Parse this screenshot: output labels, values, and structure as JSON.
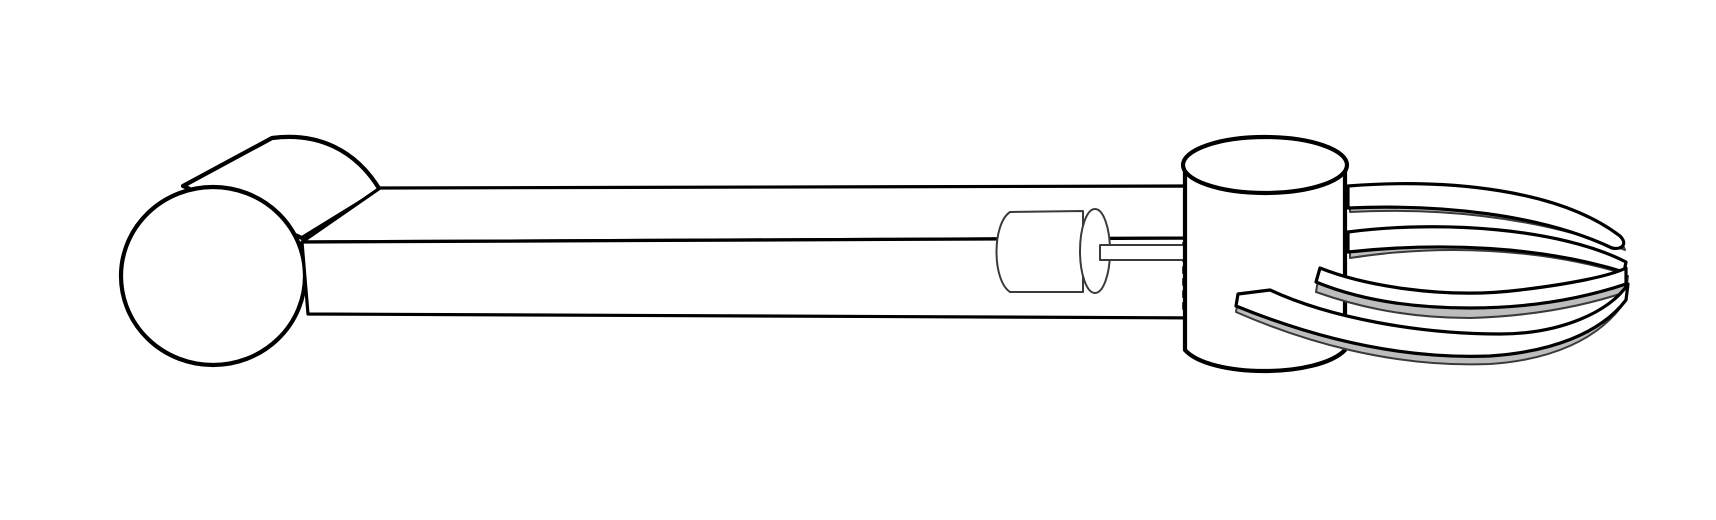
{
  "figure": {
    "subject": "robotic-arm-with-gripper",
    "colors": {
      "line": "#000000",
      "fill": "#ffffff",
      "finger_shade": "#bdbdbd"
    }
  }
}
